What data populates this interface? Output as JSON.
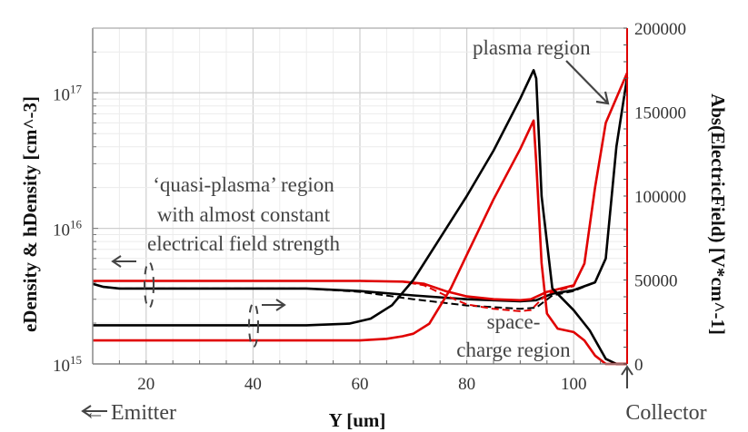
{
  "chart_data": {
    "type": "line",
    "title": "",
    "xlabel": "Y [um]",
    "ylabel_left": "eDensity & hDensity [cm^-3]",
    "ylabel_right": "Abs(ElectricField) [V*cm^-1]",
    "xlim": [
      10,
      110
    ],
    "ylim_left": [
      1000000000000000.0,
      3e+17
    ],
    "yscale_left": "log",
    "ylim_right": [
      0,
      200000
    ],
    "grid": true,
    "x_ticks": [
      20,
      40,
      60,
      80,
      100
    ],
    "x_tick_labels": [
      "20",
      "40",
      "60",
      "80",
      "100"
    ],
    "y_left_ticks": [
      {
        "base": "10",
        "exp": "15",
        "value": 1000000000000000.0
      },
      {
        "base": "10",
        "exp": "16",
        "value": 1e+16
      },
      {
        "base": "10",
        "exp": "17",
        "value": 1e+17
      }
    ],
    "y_right_ticks": [
      0,
      50000,
      100000,
      150000,
      200000
    ],
    "y_right_tick_labels": [
      "0",
      "50000",
      "100000",
      "150000",
      "200000"
    ],
    "series": [
      {
        "name": "density-black-solid",
        "axis": "left",
        "color": "#000000",
        "dash": false,
        "x": [
          10,
          12,
          15,
          30,
          50,
          60,
          70,
          80,
          90,
          93,
          96,
          100,
          104,
          106,
          108,
          110
        ],
        "y": [
          3900000000000000.0,
          3700000000000000.0,
          3600000000000000.0,
          3600000000000000.0,
          3600000000000000.0,
          3450000000000000.0,
          3200000000000000.0,
          3000000000000000.0,
          2900000000000000.0,
          2950000000000000.0,
          3300000000000000.0,
          3500000000000000.0,
          4000000000000000.0,
          6000000000000000.0,
          4e+16,
          1.3e+17
        ]
      },
      {
        "name": "density-black-dashed",
        "axis": "left",
        "color": "#000000",
        "dash": true,
        "x": [
          10,
          12,
          15,
          30,
          50,
          60,
          70,
          80,
          90,
          93,
          96,
          100,
          104,
          106,
          108,
          110
        ],
        "y": [
          3900000000000000.0,
          3700000000000000.0,
          3600000000000000.0,
          3600000000000000.0,
          3600000000000000.0,
          3400000000000000.0,
          3000000000000000.0,
          2700000000000000.0,
          2550000000000000.0,
          2600000000000000.0,
          3200000000000000.0,
          3450000000000000.0,
          4000000000000000.0,
          6000000000000000.0,
          4e+16,
          1.3e+17
        ]
      },
      {
        "name": "density-red-solid",
        "axis": "left",
        "color": "#e00000",
        "dash": false,
        "x": [
          10,
          30,
          50,
          60,
          68,
          72,
          76,
          80,
          85,
          90,
          92,
          95,
          100,
          102,
          104,
          106,
          110
        ],
        "y": [
          4100000000000000.0,
          4100000000000000.0,
          4100000000000000.0,
          4100000000000000.0,
          4050000000000000.0,
          3900000000000000.0,
          3450000000000000.0,
          3150000000000000.0,
          3000000000000000.0,
          2950000000000000.0,
          3000000000000000.0,
          3400000000000000.0,
          3800000000000000.0,
          5500000000000000.0,
          2e+16,
          6e+16,
          1.4e+17
        ]
      },
      {
        "name": "density-red-dashed",
        "axis": "left",
        "color": "#e00000",
        "dash": true,
        "x": [
          10,
          30,
          50,
          60,
          68,
          72,
          76,
          80,
          85,
          90,
          92,
          95,
          100,
          102,
          104,
          106,
          110
        ],
        "y": [
          4100000000000000.0,
          4100000000000000.0,
          4100000000000000.0,
          4100000000000000.0,
          4050000000000000.0,
          3800000000000000.0,
          3200000000000000.0,
          2750000000000000.0,
          2550000000000000.0,
          2450000000000000.0,
          2500000000000000.0,
          3300000000000000.0,
          3750000000000000.0,
          5500000000000000.0,
          2e+16,
          6e+16,
          1.4e+17
        ]
      },
      {
        "name": "efield-black",
        "axis": "right",
        "color": "#000000",
        "dash": false,
        "x": [
          10,
          50,
          58,
          62,
          66,
          70,
          75,
          80,
          85,
          90,
          92.5,
          93,
          94,
          96,
          100,
          103,
          106,
          108,
          110
        ],
        "y": [
          23000,
          23000,
          24000,
          27000,
          35000,
          50000,
          75000,
          100000,
          127000,
          158000,
          175000,
          170000,
          100000,
          45000,
          32000,
          20000,
          3000,
          0,
          0
        ]
      },
      {
        "name": "efield-red",
        "axis": "right",
        "color": "#e00000",
        "dash": false,
        "x": [
          10,
          60,
          65,
          68,
          70,
          73,
          77,
          80,
          85,
          90,
          92.5,
          93,
          94,
          95,
          97,
          100,
          102,
          104,
          106,
          110
        ],
        "y": [
          14000,
          14000,
          15000,
          16500,
          18000,
          24000,
          45000,
          65000,
          98000,
          128000,
          145000,
          120000,
          60000,
          30000,
          21000,
          19000,
          14000,
          5000,
          0,
          0
        ]
      }
    ],
    "annotations": [
      {
        "text": "plasma region"
      },
      {
        "text": "‘quasi-plasma’ region"
      },
      {
        "text": "with almost constant"
      },
      {
        "text": "electrical field strength"
      },
      {
        "text": "space-"
      },
      {
        "text": "charge region"
      }
    ],
    "side_labels": {
      "emitter": "← Emitter",
      "collector": "Collector"
    },
    "colors": {
      "black_series": "#000000",
      "red_series": "#e00000",
      "grid": "#d8d8d8",
      "axis": "#888888"
    }
  }
}
